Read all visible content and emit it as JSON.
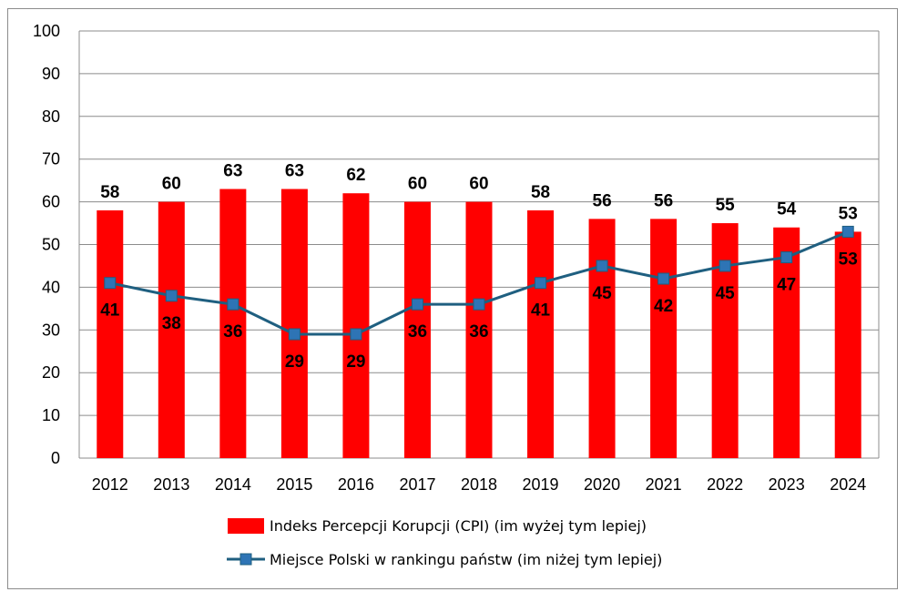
{
  "chart_data": {
    "type": "bar",
    "categories": [
      "2012",
      "2013",
      "2014",
      "2015",
      "2016",
      "2017",
      "2018",
      "2019",
      "2020",
      "2021",
      "2022",
      "2023",
      "2024"
    ],
    "ylim": [
      0,
      100
    ],
    "yticks": [
      0,
      10,
      20,
      30,
      40,
      50,
      60,
      70,
      80,
      90,
      100
    ],
    "grid": true,
    "legend_position": "bottom",
    "series": [
      {
        "name": "Indeks Percepcji Korupcji (CPI) (im wyżej tym lepiej)",
        "type": "bar",
        "color": "#ff0000",
        "values": [
          58,
          60,
          63,
          63,
          62,
          60,
          60,
          58,
          56,
          56,
          55,
          54,
          53
        ]
      },
      {
        "name": "Miejsce Polski w rankingu państw (im niżej tym lepiej)",
        "type": "line",
        "color": "#1f5f80",
        "marker_color": "#2e74b5",
        "values": [
          41,
          38,
          36,
          29,
          29,
          36,
          36,
          41,
          45,
          42,
          45,
          47,
          53
        ]
      }
    ]
  }
}
